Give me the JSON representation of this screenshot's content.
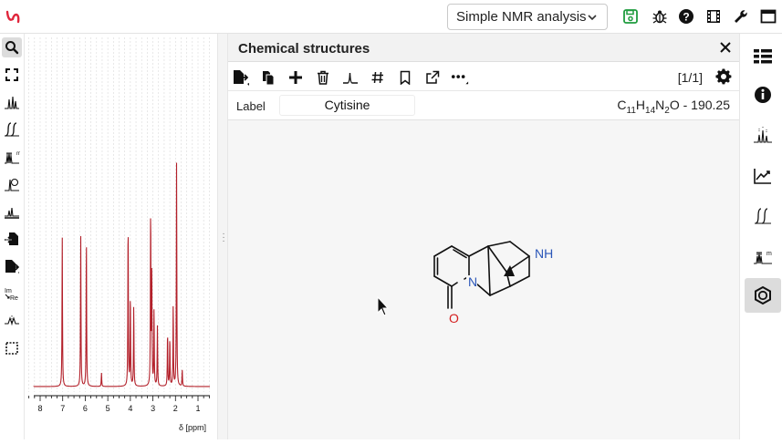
{
  "topbar": {
    "preset_value": "Simple NMR analysis",
    "icons": [
      "logo-icon",
      "save-icon",
      "bug-icon",
      "help-icon",
      "film-icon",
      "wrench-icon",
      "window-icon"
    ]
  },
  "leftbar": {
    "items": [
      "zoom-icon",
      "full-view-icon",
      "peak-picking-icon",
      "integral-icon",
      "multiplet-icon",
      "phase-correction-icon",
      "baseline-icon",
      "import-icon",
      "export-icon",
      "real-imaginary-icon",
      "spectrum-icon",
      "select-icon"
    ]
  },
  "spectrum": {
    "x_label": "δ [ppm]",
    "ticks": [
      "8",
      "7",
      "6",
      "5",
      "4",
      "3",
      "2",
      "1"
    ],
    "color": "#b3202a"
  },
  "panel": {
    "title": "Chemical structures",
    "counter": "[1/1]",
    "label_caption": "Label",
    "label_value": "Cytisine",
    "formula": {
      "c": "C",
      "c_n": "11",
      "h": "H",
      "h_n": "14",
      "n": "N",
      "n_n": "2",
      "o": "O",
      "mass": " - 190.25"
    },
    "molecule": {
      "nh_label": "NH",
      "n_label": "N",
      "o_label": "O"
    }
  },
  "rightbar": {
    "items": [
      "table-icon",
      "info-icon",
      "peaks-icon",
      "chart-icon",
      "integral-icon",
      "multiplet-icon",
      "structure-icon"
    ]
  }
}
